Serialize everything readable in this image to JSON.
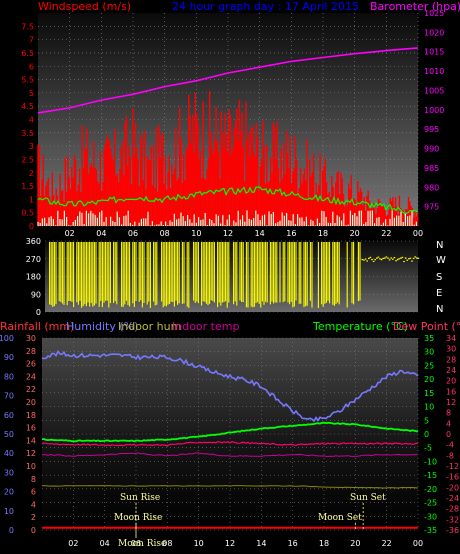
{
  "header": {
    "left": "Windspeed (m/s)",
    "center": "24 hour graph day : 17 April 2015",
    "right": "Barometer (hpa)"
  },
  "bottom_header": {
    "rainfall": "Rainfall (mm)",
    "humidity": "Humidity (%)",
    "indoor_hum": "Indoor hum",
    "indoor_temp": "Indoor temp",
    "temperature": "Temperature (°C)",
    "dew_point": "Dew Point (°C)"
  },
  "compass": [
    "N",
    "W",
    "S",
    "E",
    "N"
  ],
  "annotations": {
    "sun_rise": "Sun Rise",
    "sun_set": "Sun Set",
    "moon_rise": "Moon Rise",
    "moon_set": "Moon Set",
    "moon_rise_axis": "Moon Rise"
  },
  "colors": {
    "windspeed_label": "#ff0000",
    "barometer_label": "#ff00ff",
    "title": "#0000ff",
    "wind_gust": "#ff0000",
    "wind_avg": "#00ff00",
    "wind_min": "#e0ffe0",
    "barometer": "#ff00ff",
    "direction": "#ffff00",
    "humidity": "#7777ff",
    "temperature": "#00ff00",
    "dew_point": "#ff0066",
    "indoor_temp": "#cc0099",
    "indoor_hum": "#888800",
    "rainfall": "#ff0000",
    "axis_ticks": "#ffffff",
    "humidity_axis": "#7777ff",
    "rain_axis": "#ff6666",
    "temp_axis": "#00ff00",
    "dew_axis": "#ff3366"
  },
  "chart_data": [
    {
      "type": "line",
      "name": "wind",
      "x_range": [
        0,
        24
      ],
      "x_ticks": [
        "02",
        "04",
        "06",
        "08",
        "10",
        "12",
        "14",
        "16",
        "18",
        "20",
        "22",
        "00"
      ],
      "ylim_left": [
        0,
        8
      ],
      "y_ticks_left": [
        "0",
        "0.5",
        "1",
        "1.5",
        "2",
        "2.5",
        "3",
        "3.5",
        "4",
        "4.5",
        "5",
        "5.5",
        "6",
        "6.5",
        "7",
        "7.5"
      ],
      "ylim_right": [
        970,
        1025
      ],
      "y_ticks_right": [
        "975",
        "980",
        "985",
        "990",
        "995",
        "1000",
        "1005",
        "1010",
        "1015",
        "1020",
        "1025"
      ],
      "barometer": {
        "x": [
          0,
          2,
          4,
          6,
          8,
          10,
          12,
          14,
          16,
          18,
          20,
          22,
          24
        ],
        "y": [
          999.2,
          1000.5,
          1002.5,
          1004.0,
          1006.0,
          1007.5,
          1009.5,
          1011.0,
          1012.5,
          1013.5,
          1014.5,
          1015.3,
          1016.0
        ]
      },
      "gust_envelope": {
        "x": [
          0,
          1,
          2,
          3,
          4,
          5,
          6,
          7,
          8,
          9,
          10,
          11,
          12,
          13,
          14,
          15,
          16,
          17,
          18,
          19,
          20,
          21,
          22,
          23,
          24
        ],
        "y": [
          3.0,
          1.8,
          2.8,
          3.6,
          3.2,
          3.4,
          4.2,
          3.0,
          3.8,
          4.2,
          5.0,
          4.6,
          4.2,
          4.6,
          3.8,
          3.6,
          3.6,
          3.0,
          2.4,
          2.0,
          1.8,
          1.2,
          1.0,
          1.2,
          0.8
        ]
      },
      "average": {
        "x": [
          0,
          2,
          4,
          6,
          8,
          10,
          12,
          14,
          16,
          18,
          20,
          22,
          24
        ],
        "y": [
          1.0,
          0.8,
          0.9,
          1.1,
          1.0,
          1.2,
          1.3,
          1.4,
          1.2,
          1.0,
          0.9,
          0.7,
          0.5
        ]
      }
    },
    {
      "type": "scatter",
      "name": "wind_direction",
      "ylim": [
        0,
        360
      ],
      "y_ticks": [
        "0",
        "90",
        "180",
        "270",
        "360"
      ],
      "x_range": [
        0,
        24
      ]
    },
    {
      "type": "line",
      "name": "temperature_humidity",
      "x_range": [
        0,
        24
      ],
      "x_ticks": [
        "02",
        "04",
        "06",
        "08",
        "10",
        "12",
        "14",
        "16",
        "18",
        "20",
        "22",
        "00"
      ],
      "humidity_ticks": [
        "0",
        "10",
        "20",
        "30",
        "40",
        "50",
        "60",
        "70",
        "80",
        "90",
        "100"
      ],
      "rain_ticks": [
        "0",
        "2",
        "4",
        "6",
        "8",
        "10",
        "12",
        "14",
        "16",
        "18",
        "20",
        "22",
        "24",
        "26",
        "28",
        "30"
      ],
      "temp_ticks": [
        "-35",
        "-30",
        "-25",
        "-20",
        "-15",
        "-10",
        "-5",
        "0",
        "5",
        "10",
        "15",
        "20",
        "25",
        "30",
        "35"
      ],
      "dew_ticks": [
        "-36",
        "-32",
        "-28",
        "-24",
        "-20",
        "-16",
        "-12",
        "-8",
        "-4",
        "0",
        "4",
        "8",
        "12",
        "16",
        "20",
        "24",
        "28",
        "30",
        "34"
      ],
      "humidity_range": [
        0,
        100
      ],
      "temp_range": [
        -35,
        35
      ],
      "humidity": {
        "x": [
          0,
          1,
          2,
          3,
          4,
          5,
          6,
          7,
          8,
          9,
          10,
          11,
          12,
          13,
          14,
          15,
          16,
          17,
          18,
          19,
          20,
          21,
          22,
          23,
          24
        ],
        "y": [
          90,
          92,
          91,
          91,
          91,
          91,
          90,
          90,
          90,
          88,
          85,
          82,
          80,
          78,
          75,
          68,
          62,
          57,
          58,
          62,
          68,
          74,
          80,
          83,
          80
        ]
      },
      "temperature": {
        "x": [
          0,
          2,
          4,
          6,
          8,
          10,
          12,
          14,
          16,
          18,
          20,
          22,
          24
        ],
        "y": [
          -2.0,
          -2.5,
          -2.5,
          -2.5,
          -2.0,
          -1.0,
          0.5,
          2.0,
          3.0,
          4.0,
          3.5,
          2.0,
          1.0
        ]
      },
      "dew_point": {
        "x": [
          0,
          2,
          4,
          6,
          8,
          10,
          12,
          14,
          16,
          18,
          20,
          22,
          24
        ],
        "y": [
          -3.5,
          -3.8,
          -4.0,
          -4.0,
          -4.0,
          -3.0,
          -3.0,
          -3.5,
          -4.0,
          -3.5,
          -3.5,
          -3.5,
          -3.5
        ]
      },
      "indoor_temp": {
        "x": [
          0,
          2,
          4,
          6,
          8,
          10,
          12,
          14,
          16,
          18,
          20,
          22,
          24
        ],
        "y": [
          -7.5,
          -8.0,
          -7.5,
          -7.0,
          -8.0,
          -7.0,
          -8.0,
          -8.0,
          -7.5,
          -8.0,
          -8.0,
          -7.5,
          -7.5
        ]
      },
      "indoor_hum": {
        "x": [
          0,
          4,
          8,
          12,
          16,
          20,
          24
        ],
        "y": [
          23,
          23,
          23,
          23,
          23,
          22,
          22
        ]
      },
      "rainfall": {
        "x": [
          0,
          24
        ],
        "y": [
          0.2,
          0.2
        ]
      },
      "events": {
        "sun_rise": 6.0,
        "sun_set": 20.5,
        "moon_rise": 6.0,
        "moon_set": 20.0
      }
    }
  ]
}
